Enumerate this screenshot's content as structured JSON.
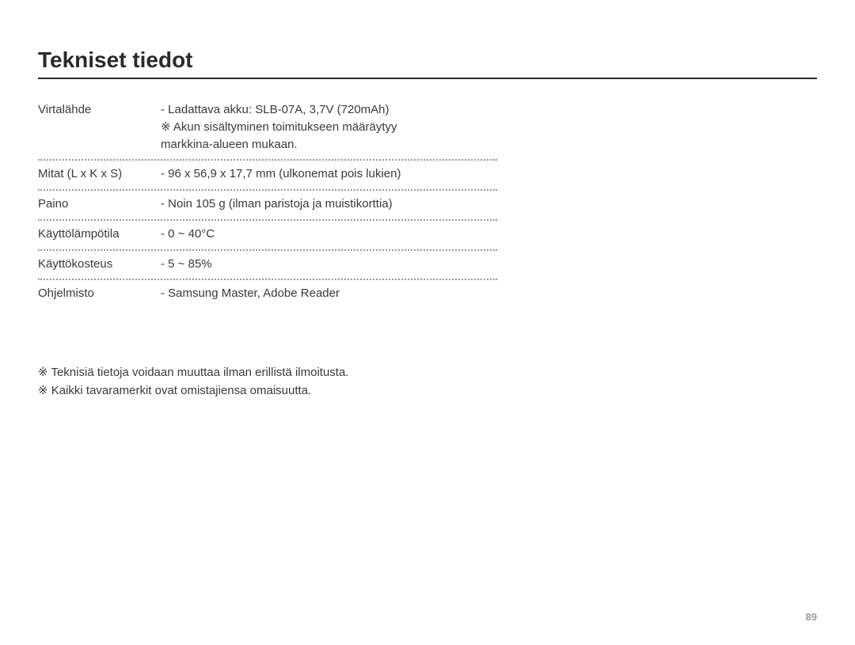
{
  "title": "Tekniset tiedot",
  "specs": [
    {
      "label": "Virtalähde",
      "lines": [
        "- Ladattava akku: SLB-07A, 3,7V (720mAh)",
        "※ Akun sisältyminen toimitukseen määräytyy",
        "  markkina-alueen mukaan."
      ]
    },
    {
      "label": "Mitat (L x K x S)",
      "lines": [
        "- 96 x 56,9 x 17,7 mm (ulkonemat pois lukien)"
      ]
    },
    {
      "label": "Paino",
      "lines": [
        "- Noin 105 g (ilman paristoja ja muistikorttia)"
      ]
    },
    {
      "label": "Käyttölämpötila",
      "lines": [
        "- 0 ~ 40°C"
      ]
    },
    {
      "label": "Käyttökosteus",
      "lines": [
        "- 5 ~ 85%"
      ]
    },
    {
      "label": "Ohjelmisto",
      "lines": [
        "- Samsung Master, Adobe Reader"
      ]
    }
  ],
  "notes": [
    "※ Teknisiä tietoja voidaan muuttaa ilman erillistä ilmoitusta.",
    "※ Kaikki tavaramerkit ovat omistajiensa omaisuutta."
  ],
  "pageNumber": "89",
  "colors": {
    "text": "#3a3a3a",
    "title": "#2a2a2a",
    "dotted": "#9a9a9a",
    "pageNum": "#9a9a9a",
    "background": "#ffffff"
  },
  "typography": {
    "title_fontsize": 28,
    "body_fontsize": 15,
    "pagenum_fontsize": 13
  }
}
